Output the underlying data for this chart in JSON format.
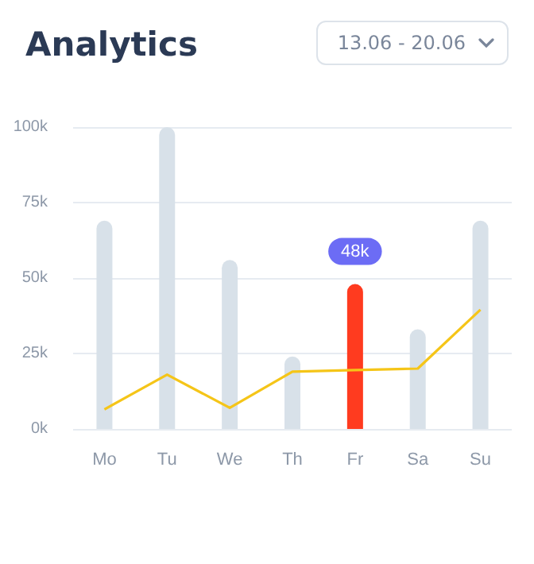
{
  "chart_data": {
    "type": "bar",
    "title": "Analytics",
    "annotations": [
      "13.06 - 20.06"
    ],
    "categories": [
      "Mo",
      "Tu",
      "We",
      "Th",
      "Fr",
      "Sa",
      "Su"
    ],
    "series": [
      {
        "values": [
          69,
          100,
          56,
          24,
          48,
          33,
          69
        ],
        "colors": [
          "#d8e1e9",
          "#d8e1e9",
          "#d8e1e9",
          "#d8e1e9",
          "#ff3b1f",
          "#d8e1e9",
          "#d8e1e9"
        ],
        "value_labels": [
          null,
          null,
          null,
          null,
          "48k",
          null,
          null
        ]
      },
      {
        "type": "line",
        "color": "#f5c518",
        "values": [
          6.5,
          18,
          7,
          19,
          19.5,
          20,
          39.5
        ]
      }
    ],
    "ylim": [
      0,
      100
    ],
    "yticks": [
      {
        "value": 0,
        "label": "0k"
      },
      {
        "value": 25,
        "label": "25k"
      },
      {
        "value": 50,
        "label": "50k"
      },
      {
        "value": 75,
        "label": "75k"
      },
      {
        "value": 100,
        "label": "100k"
      }
    ],
    "grid": "y",
    "marker": "none",
    "line_style": "solid"
  }
}
